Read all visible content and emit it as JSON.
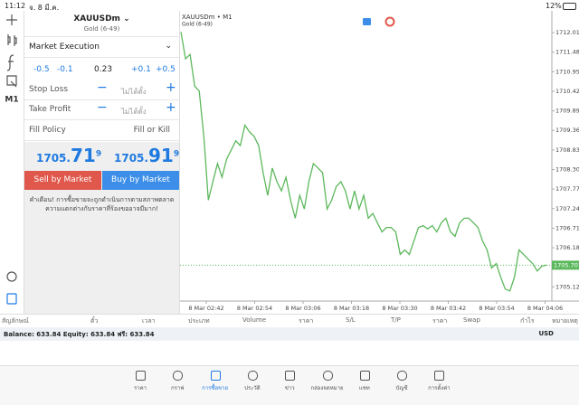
{
  "status_bar": {
    "time": "11:12",
    "date": "จ. 8 มี.ค.",
    "battery": "12%"
  },
  "toolbar": {
    "timeframe": "M1"
  },
  "order": {
    "symbol": "XAUUSDm",
    "description": "Gold (6-49)",
    "execution": "Market Execution",
    "steps": [
      "-0.5",
      "-0.1",
      "+0.1",
      "+0.5"
    ],
    "volume": "0.23",
    "stop_loss": {
      "label": "Stop Loss",
      "value": "ไม่ได้ตั้ง"
    },
    "take_profit": {
      "label": "Take Profit",
      "value": "ไม่ได้ตั้ง"
    },
    "fill_policy": {
      "label": "Fill Policy",
      "value": "Fill or Kill"
    },
    "bid": {
      "main": "1705.",
      "big": "71",
      "sup": "9"
    },
    "ask": {
      "main": "1705.",
      "big": "91",
      "sup": "9"
    },
    "sell": "Sell by Market",
    "buy": "Buy by Market",
    "warning": [
      "คำเตือน! การซื้อขายจะถูกดำเนินการตามสภาพตลาด",
      "ความแตกต่างกับราคาที่ร้องขออาจมีมาก!"
    ]
  },
  "chart": {
    "type": "line",
    "title": "XAUUSDm • M1",
    "subtitle": "Gold (6-49)",
    "color": "#5cb85c",
    "ylim": [
      1704.76,
      1712.6
    ],
    "yticks": [
      {
        "value": 1712.01,
        "label": "1712.010"
      },
      {
        "value": 1711.48,
        "label": "1711.480"
      },
      {
        "value": 1710.95,
        "label": "1710.950"
      },
      {
        "value": 1710.42,
        "label": "1710.420"
      },
      {
        "value": 1709.89,
        "label": "1709.890"
      },
      {
        "value": 1709.36,
        "label": "1709.360"
      },
      {
        "value": 1708.83,
        "label": "1708.830"
      },
      {
        "value": 1708.3,
        "label": "1708.300"
      },
      {
        "value": 1707.77,
        "label": "1707.770"
      },
      {
        "value": 1707.24,
        "label": "1707.240"
      },
      {
        "value": 1706.71,
        "label": "1706.710"
      },
      {
        "value": 1706.18,
        "label": "1706.180"
      },
      {
        "value": 1705.12,
        "label": "1705.120"
      }
    ],
    "categories": [
      "8 Mar 02:42",
      "8 Mar 02:54",
      "8 Mar 03:06",
      "8 Mar 03:18",
      "8 Mar 03:30",
      "8 Mar 03:42",
      "8 Mar 03:54",
      "8 Mar 04:06"
    ],
    "current_price": {
      "value": 1705.707,
      "label": "1705.707"
    },
    "values": [
      1712.03,
      1711.3,
      1711.42,
      1710.56,
      1710.43,
      1709.2,
      1707.47,
      1707.97,
      1708.46,
      1708.09,
      1708.58,
      1708.83,
      1709.08,
      1708.95,
      1709.5,
      1709.32,
      1709.2,
      1708.95,
      1708.21,
      1707.6,
      1708.34,
      1707.97,
      1707.72,
      1708.09,
      1707.47,
      1706.98,
      1707.6,
      1707.23,
      1707.97,
      1708.46,
      1708.34,
      1708.21,
      1707.23,
      1707.47,
      1707.84,
      1707.97,
      1707.72,
      1707.23,
      1707.72,
      1707.23,
      1707.6,
      1706.98,
      1707.11,
      1706.86,
      1706.61,
      1706.73,
      1706.73,
      1706.61,
      1706.0,
      1706.12,
      1706.0,
      1706.37,
      1706.73,
      1706.78,
      1706.69,
      1706.78,
      1706.61,
      1706.86,
      1706.98,
      1706.61,
      1706.49,
      1706.86,
      1706.98,
      1706.98,
      1706.86,
      1706.73,
      1706.37,
      1706.12,
      1705.63,
      1705.75,
      1705.38,
      1705.06,
      1705.01,
      1705.38,
      1706.12,
      1706.0,
      1705.87,
      1705.75,
      1705.55,
      1705.68,
      1705.71
    ]
  },
  "trade_table": {
    "columns": [
      "สัญลักษณ์",
      "ตั๋ว",
      "เวลา",
      "ประเภท",
      "Volume",
      "ราคา",
      "S/L",
      "T/P",
      "ราคา",
      "Swap",
      "กำไร",
      "หมายเหตุ"
    ],
    "balance": "Balance: 633.84 Equity: 633.84 ฟรี: 633.84",
    "currency": "USD"
  },
  "tabs": [
    "ราคา",
    "กราฟ",
    "การซื้อขาย",
    "ประวัติ",
    "ข่าว",
    "กล่องจดหมาย",
    "แชท",
    "บัญชี",
    "การตั้งค่า"
  ]
}
